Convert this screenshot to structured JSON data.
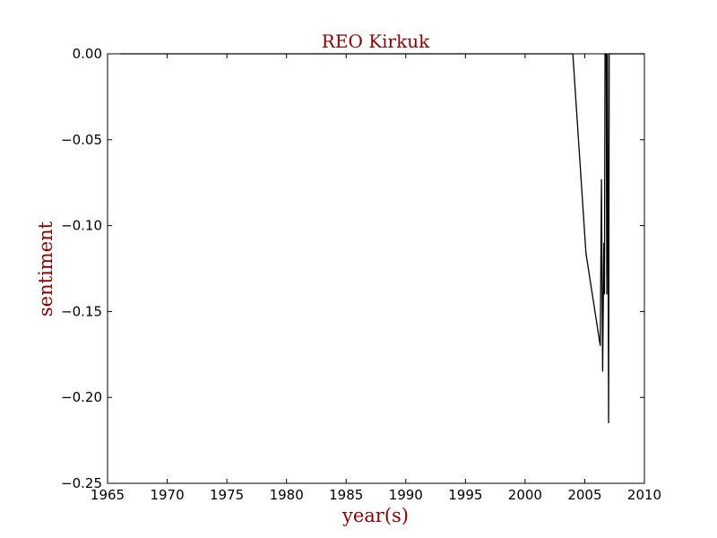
{
  "chart_data": {
    "type": "line",
    "title": "REO Kirkuk",
    "xlabel": "year(s)",
    "ylabel": "sentiment",
    "xlim": [
      1965,
      2010
    ],
    "ylim": [
      -0.25,
      0.0
    ],
    "grid": false,
    "legend": "none",
    "colors": {
      "title": "#8b0000",
      "line": "#000000"
    },
    "x_ticks": [
      "1965",
      "1970",
      "1975",
      "1980",
      "1985",
      "1990",
      "1995",
      "2000",
      "2005",
      "2010"
    ],
    "y_ticks": [
      "0.00",
      "−0.05",
      "−0.10",
      "−0.15",
      "−0.20",
      "−0.25"
    ],
    "series": [
      {
        "x": [
          1966.1,
          2004.0,
          2005.1,
          2006.3,
          2006.4,
          2006.5,
          2006.6,
          2006.65,
          2006.7,
          2006.8,
          2006.85,
          2006.9,
          2007.0,
          2007.05,
          2007.1,
          2010.0
        ],
        "y": [
          0.0,
          0.0,
          -0.116,
          -0.17,
          -0.073,
          -0.185,
          -0.11,
          -0.14,
          0.0,
          0.0,
          -0.14,
          0.0,
          -0.215,
          0.0,
          0.0,
          0.0
        ]
      }
    ]
  }
}
